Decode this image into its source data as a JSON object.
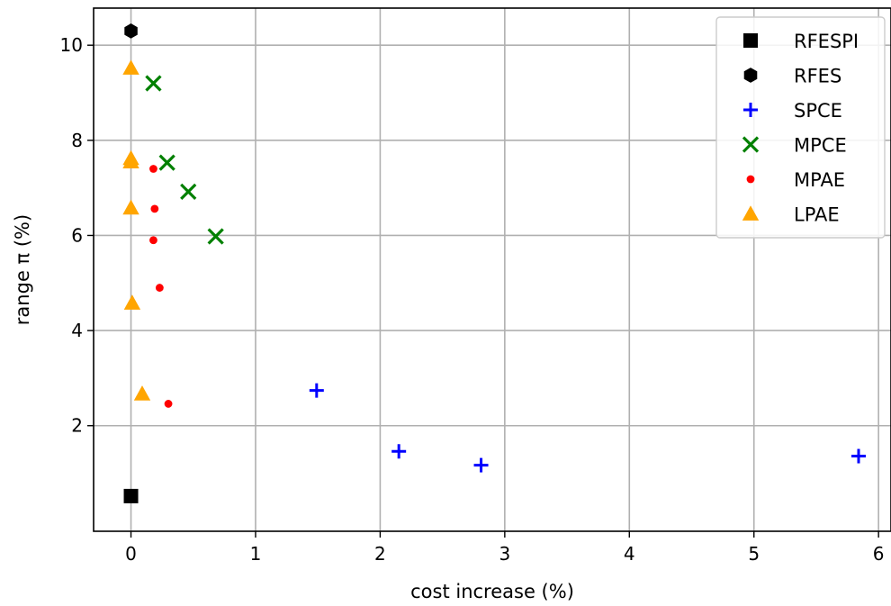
{
  "chart_data": {
    "type": "scatter",
    "title": "",
    "xlabel": "cost increase (%)",
    "ylabel": "range π (%)",
    "xlim": [
      -0.3,
      6.1
    ],
    "ylim": [
      -0.22,
      10.78
    ],
    "xticks": [
      0,
      1,
      2,
      3,
      4,
      5,
      6
    ],
    "yticks": [
      2,
      4,
      6,
      8,
      10
    ],
    "grid": true,
    "legend_position": "top-right",
    "series": [
      {
        "name": "RFESPI",
        "marker": "square",
        "color": "#000000",
        "points": [
          [
            0.0,
            0.52
          ]
        ]
      },
      {
        "name": "RFES",
        "marker": "hexagon",
        "color": "#000000",
        "points": [
          [
            0.0,
            10.3
          ]
        ]
      },
      {
        "name": "SPCE",
        "marker": "plus",
        "color": "#0000ff",
        "points": [
          [
            1.49,
            2.74
          ],
          [
            2.15,
            1.46
          ],
          [
            2.81,
            1.17
          ],
          [
            5.84,
            1.36
          ]
        ]
      },
      {
        "name": "MPCE",
        "marker": "x",
        "color": "#008000",
        "points": [
          [
            0.18,
            9.2
          ],
          [
            0.29,
            7.53
          ],
          [
            0.46,
            6.92
          ],
          [
            0.68,
            5.98
          ]
        ]
      },
      {
        "name": "MPAE",
        "marker": "dot",
        "color": "#ff0000",
        "points": [
          [
            0.18,
            7.4
          ],
          [
            0.19,
            6.56
          ],
          [
            0.18,
            5.9
          ],
          [
            0.23,
            4.9
          ],
          [
            0.3,
            2.46
          ]
        ]
      },
      {
        "name": "LPAE",
        "marker": "triangle",
        "color": "#ffa500",
        "points": [
          [
            0.0,
            9.52
          ],
          [
            0.0,
            7.62
          ],
          [
            0.0,
            7.55
          ],
          [
            0.0,
            6.58
          ],
          [
            0.01,
            4.58
          ],
          [
            0.09,
            2.67
          ]
        ]
      }
    ]
  }
}
